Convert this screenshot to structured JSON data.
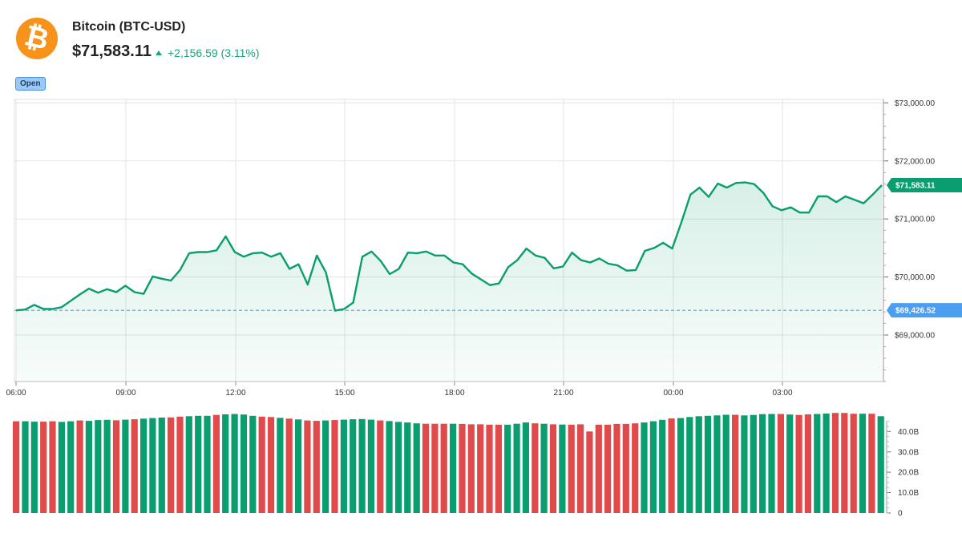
{
  "header": {
    "icon": "bitcoin-icon",
    "icon_glyph": "₿",
    "title": "Bitcoin (BTC-USD)",
    "price": "$71,583.11",
    "change": "+2,156.59 (3.11%)",
    "badge": "Open"
  },
  "colors": {
    "up": "#0a9d6e",
    "down": "#e04a4a",
    "baseline": "#4b9ef0",
    "grid": "#e3e3e3",
    "brand": "#f7931a"
  },
  "chart_data": {
    "type": "line",
    "x_ticks": [
      "06:00",
      "09:00",
      "12:00",
      "15:00",
      "18:00",
      "21:00",
      "00:00",
      "03:00"
    ],
    "y_ticks": [
      "$73,000.00",
      "$72,000.00",
      "$71,000.00",
      "$70,000.00",
      "$69,000.00"
    ],
    "ylim": [
      68200,
      73060
    ],
    "baseline": {
      "value": 69426.52,
      "label": "$69,426.52"
    },
    "last": {
      "value": 71583.11,
      "label": "$71,583.11"
    },
    "price_series": [
      69426.52,
      69440,
      69520,
      69450,
      69450,
      69480,
      69590,
      69700,
      69800,
      69730,
      69790,
      69740,
      69850,
      69740,
      69710,
      70010,
      69970,
      69940,
      70120,
      70410,
      70430,
      70430,
      70460,
      70700,
      70430,
      70350,
      70410,
      70420,
      70350,
      70410,
      70140,
      70220,
      69870,
      70370,
      70080,
      69420,
      69450,
      69560,
      70350,
      70440,
      70280,
      70050,
      70140,
      70420,
      70410,
      70440,
      70370,
      70370,
      70250,
      70220,
      70060,
      69960,
      69860,
      69890,
      70170,
      70290,
      70490,
      70370,
      70330,
      70150,
      70180,
      70420,
      70290,
      70250,
      70320,
      70230,
      70200,
      70110,
      70120,
      70450,
      70500,
      70590,
      70490,
      70940,
      71420,
      71540,
      71380,
      71610,
      71540,
      71620,
      71630,
      71600,
      71450,
      71220,
      71150,
      71200,
      71110,
      71110,
      71390,
      71390,
      71290,
      71390,
      71330,
      71270,
      71420,
      71583.11
    ],
    "volume": {
      "y_ticks": [
        "40.0B",
        "30.0B",
        "20.0B",
        "10.0B",
        "0"
      ],
      "ylim": [
        0,
        48
      ],
      "values": [
        45,
        45,
        44.8,
        44.8,
        45,
        44.7,
        45,
        45.4,
        45.2,
        45.6,
        45.7,
        45.5,
        45.8,
        46,
        46.3,
        46.6,
        46.8,
        46.9,
        47.3,
        47.5,
        47.7,
        47.7,
        48.1,
        48.4,
        48.6,
        48.3,
        47.7,
        47.3,
        47.1,
        46.7,
        46.3,
        45.9,
        45.4,
        45.2,
        45.4,
        45.6,
        45.8,
        46,
        46.1,
        45.8,
        45.4,
        45.1,
        44.7,
        44.4,
        44,
        43.8,
        43.8,
        43.8,
        43.8,
        43.7,
        43.5,
        43.5,
        43.3,
        43.3,
        43.3,
        43.8,
        44.4,
        44,
        43.8,
        43.5,
        43.4,
        43.3,
        43.5,
        40,
        43.3,
        43.3,
        43.7,
        43.7,
        44,
        44.4,
        45,
        45.7,
        46.4,
        46.6,
        47.1,
        47.5,
        47.7,
        47.9,
        48.2,
        48.2,
        47.9,
        48.1,
        48.5,
        48.6,
        48.6,
        48.3,
        48.1,
        48.4,
        48.6,
        48.8,
        49.1,
        49.1,
        48.7,
        48.7,
        48.7,
        47.5
      ],
      "colors": [
        "down",
        "up",
        "up",
        "down",
        "down",
        "up",
        "up",
        "down",
        "up",
        "up",
        "up",
        "down",
        "up",
        "down",
        "up",
        "up",
        "up",
        "down",
        "down",
        "up",
        "up",
        "up",
        "down",
        "up",
        "up",
        "up",
        "up",
        "down",
        "down",
        "up",
        "down",
        "up",
        "down",
        "down",
        "up",
        "down",
        "up",
        "up",
        "up",
        "up",
        "down",
        "up",
        "up",
        "up",
        "up",
        "down",
        "down",
        "down",
        "up",
        "down",
        "down",
        "down",
        "down",
        "down",
        "up",
        "up",
        "up",
        "down",
        "up",
        "down",
        "up",
        "down",
        "down",
        "down",
        "down",
        "down",
        "down",
        "down",
        "down",
        "up",
        "up",
        "up",
        "down",
        "up",
        "up",
        "up",
        "up",
        "up",
        "up",
        "down",
        "up",
        "up",
        "up",
        "up",
        "down",
        "up",
        "down",
        "down",
        "up",
        "up",
        "down",
        "down",
        "down",
        "up",
        "down",
        "up"
      ]
    }
  }
}
